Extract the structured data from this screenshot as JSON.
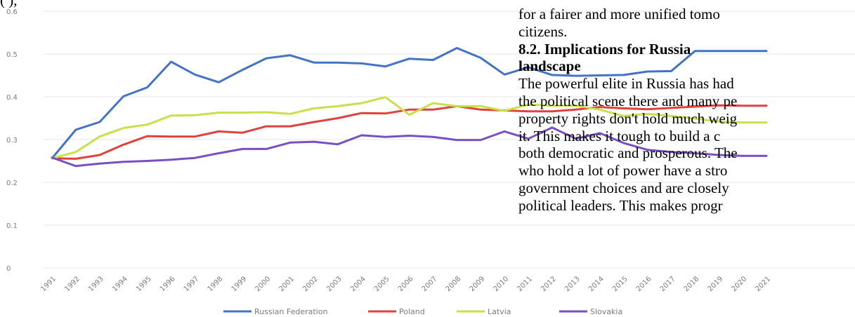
{
  "chart_data": {
    "type": "line",
    "categories": [
      "1991",
      "1992",
      "1993",
      "1994",
      "1995",
      "1996",
      "1997",
      "1998",
      "1999",
      "2000",
      "2001",
      "2002",
      "2003",
      "2004",
      "2005",
      "2006",
      "2007",
      "2008",
      "2009",
      "2010",
      "2011",
      "2012",
      "2013",
      "2014",
      "2015",
      "2016",
      "2017",
      "2018",
      "2019",
      "2020",
      "2021"
    ],
    "ylim": [
      0,
      0.6
    ],
    "yticks": [
      "0",
      "0.1",
      "0.2",
      "0.3",
      "0.4",
      "0.5",
      "0.6"
    ],
    "grid": true,
    "legend_position": "bottom",
    "series": [
      {
        "name": "Russian Federation",
        "color": "#4472c4",
        "values": [
          0.256,
          0.323,
          0.341,
          0.401,
          0.422,
          0.482,
          0.452,
          0.434,
          0.463,
          0.49,
          0.497,
          0.48,
          0.48,
          0.478,
          0.471,
          0.489,
          0.486,
          0.514,
          0.491,
          0.452,
          0.469,
          0.451,
          0.449,
          0.45,
          0.451,
          0.459,
          0.46,
          0.507,
          0.507,
          0.507,
          0.507
        ]
      },
      {
        "name": "Poland",
        "color": "#e0413c",
        "values": [
          0.256,
          0.255,
          0.264,
          0.288,
          0.308,
          0.307,
          0.307,
          0.319,
          0.316,
          0.331,
          0.331,
          0.341,
          0.35,
          0.362,
          0.361,
          0.37,
          0.37,
          0.378,
          0.37,
          0.368,
          0.366,
          0.366,
          0.37,
          0.376,
          0.373,
          0.371,
          0.374,
          0.377,
          0.38,
          0.379,
          0.379
        ]
      },
      {
        "name": "Latvia",
        "color": "#c9e04a",
        "values": [
          0.256,
          0.271,
          0.307,
          0.327,
          0.335,
          0.356,
          0.357,
          0.363,
          0.363,
          0.364,
          0.36,
          0.373,
          0.378,
          0.385,
          0.399,
          0.358,
          0.385,
          0.378,
          0.378,
          0.367,
          0.382,
          0.379,
          0.379,
          0.37,
          0.355,
          0.36,
          0.355,
          0.349,
          0.342,
          0.34,
          0.34
        ]
      },
      {
        "name": "Slovakia",
        "color": "#7a4fc2",
        "values": [
          0.258,
          0.238,
          0.244,
          0.248,
          0.25,
          0.253,
          0.257,
          0.268,
          0.278,
          0.278,
          0.293,
          0.295,
          0.289,
          0.31,
          0.306,
          0.309,
          0.306,
          0.299,
          0.299,
          0.319,
          0.302,
          0.328,
          0.302,
          0.315,
          0.292,
          0.276,
          0.271,
          0.268,
          0.264,
          0.262,
          0.262
        ]
      }
    ]
  },
  "document": {
    "top_left": "(                          ),",
    "top_mid": "                     ",
    "lines": [
      {
        "text": "for a fairer and more unified tomo",
        "bold": false
      },
      {
        "text": "citizens.",
        "bold": false
      },
      {
        "text": "8.2.    Implications     for     Russia",
        "bold": true
      },
      {
        "text": "landscape",
        "bold": true
      },
      {
        "text": "The powerful elite in Russia has had",
        "bold": false
      },
      {
        "text": "the political scene there and many pe",
        "bold": false
      },
      {
        "text": "property rights don't hold much weig",
        "bold": false
      },
      {
        "text": "it. This makes it tough to build a c",
        "bold": false
      },
      {
        "text": "both democratic and prosperous. The",
        "bold": false
      },
      {
        "text": "who hold a lot of power have a stro",
        "bold": false
      },
      {
        "text": "government choices and are closely",
        "bold": false
      },
      {
        "text": "political leaders. This makes progr",
        "bold": false
      }
    ]
  }
}
